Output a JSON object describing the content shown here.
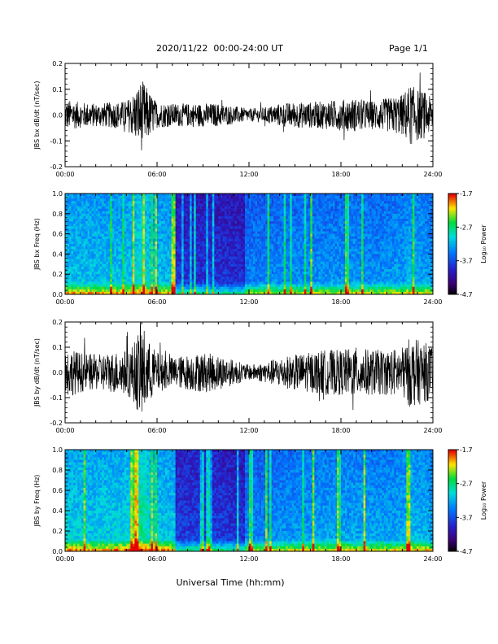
{
  "header": {
    "title": "2020/11/22  00:00-24:00 UT",
    "page": "Page 1/1"
  },
  "chart_data": [
    {
      "type": "line",
      "ylabel": "JBS bx dB/dt (nT/sec)",
      "ylim": [
        -0.2,
        0.2
      ],
      "yticks": [
        "0.2",
        "0.1",
        "0.0",
        "-0.1",
        "-0.2"
      ],
      "xlim": [
        "00:00",
        "24:00"
      ],
      "xticks": [
        "00:00",
        "06:00",
        "12:00",
        "18:00",
        "24:00"
      ],
      "series": [
        {
          "x": [
            "00:00",
            "01:00",
            "02:00",
            "03:00",
            "04:00",
            "04:30",
            "05:00",
            "05:30",
            "06:00",
            "07:00",
            "08:00",
            "09:00",
            "10:00",
            "11:00",
            "12:00",
            "13:00",
            "14:00",
            "15:00",
            "16:00",
            "17:00",
            "18:00",
            "19:00",
            "20:00",
            "21:00",
            "22:00",
            "22:30",
            "23:00",
            "23:30",
            "24:00"
          ],
          "envelope": [
            0.06,
            0.05,
            0.045,
            0.05,
            0.055,
            0.09,
            0.14,
            0.09,
            0.05,
            0.045,
            0.045,
            0.045,
            0.045,
            0.035,
            0.025,
            0.03,
            0.045,
            0.05,
            0.05,
            0.055,
            0.06,
            0.065,
            0.055,
            0.065,
            0.08,
            0.12,
            0.1,
            0.09,
            0.06
          ]
        }
      ]
    },
    {
      "type": "heatmap",
      "ylabel": "JBS bx Freq (Hz)",
      "ylim": [
        0.0,
        1.0
      ],
      "yticks": [
        "1.0",
        "0.8",
        "0.6",
        "0.4",
        "0.2",
        "0.0"
      ],
      "xlim": [
        "00:00",
        "24:00"
      ],
      "xticks": [
        "00:00",
        "06:00",
        "12:00",
        "18:00",
        "24:00"
      ],
      "colorbar": {
        "label": "Log₁₀ Power",
        "range": [
          -4.7,
          -1.7
        ],
        "ticks": [
          "-1.7",
          "-2.7",
          "-3.7",
          "-4.7"
        ]
      }
    },
    {
      "type": "line",
      "ylabel": "JBS by dB/dt (nT/sec)",
      "ylim": [
        -0.2,
        0.2
      ],
      "yticks": [
        "0.2",
        "0.1",
        "0.0",
        "-0.1",
        "-0.2"
      ],
      "xlim": [
        "00:00",
        "24:00"
      ],
      "xticks": [
        "00:00",
        "06:00",
        "12:00",
        "18:00",
        "24:00"
      ],
      "series": [
        {
          "x": [
            "00:00",
            "01:00",
            "02:00",
            "03:00",
            "04:00",
            "04:30",
            "05:00",
            "05:30",
            "06:00",
            "07:00",
            "08:00",
            "09:00",
            "10:00",
            "11:00",
            "12:00",
            "13:00",
            "14:00",
            "15:00",
            "16:00",
            "17:00",
            "18:00",
            "19:00",
            "20:00",
            "21:00",
            "22:00",
            "22:30",
            "23:00",
            "23:30",
            "24:00"
          ],
          "envelope": [
            0.1,
            0.08,
            0.07,
            0.08,
            0.09,
            0.12,
            0.2,
            0.12,
            0.08,
            0.06,
            0.07,
            0.08,
            0.07,
            0.05,
            0.03,
            0.04,
            0.06,
            0.07,
            0.08,
            0.09,
            0.09,
            0.1,
            0.09,
            0.09,
            0.1,
            0.14,
            0.13,
            0.12,
            0.1
          ]
        }
      ]
    },
    {
      "type": "heatmap",
      "ylabel": "JBS by Freq (Hz)",
      "ylim": [
        0.0,
        1.0
      ],
      "yticks": [
        "1.0",
        "0.8",
        "0.6",
        "0.4",
        "0.2",
        "0.0"
      ],
      "xlim": [
        "00:00",
        "24:00"
      ],
      "xticks": [
        "00:00",
        "06:00",
        "12:00",
        "18:00",
        "24:00"
      ],
      "xlabel": "Universal Time (hh:mm)",
      "colorbar": {
        "label": "Log₁₀ Power",
        "range": [
          -4.7,
          -1.7
        ],
        "ticks": [
          "-1.7",
          "-2.7",
          "-3.7",
          "-4.7"
        ]
      }
    }
  ]
}
